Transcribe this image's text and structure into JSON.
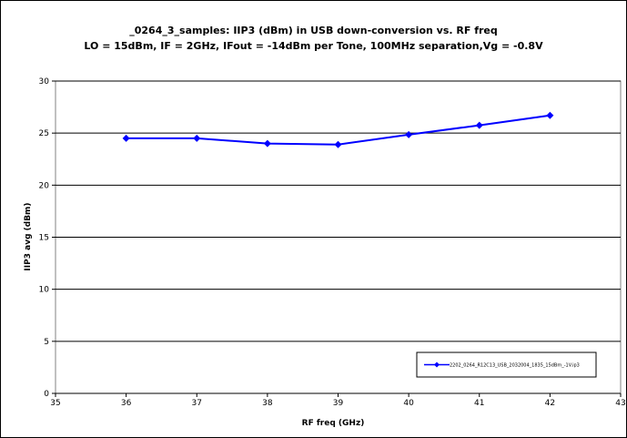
{
  "chart_data": {
    "type": "line",
    "title": "_0264_3_samples: IIP3 (dBm) in USB down-conversion vs. RF freq",
    "subtitle": "LO = 15dBm, IF = 2GHz, IFout = -14dBm per Tone, 100MHz separation,Vg = -0.8V",
    "xlabel": "RF freq (GHz)",
    "ylabel": "IIP3 avg (dBm)",
    "xlim": [
      35,
      43
    ],
    "ylim": [
      0,
      30
    ],
    "xticks": [
      35,
      36,
      37,
      38,
      39,
      40,
      41,
      42,
      43
    ],
    "yticks": [
      0,
      5,
      10,
      15,
      20,
      25,
      30
    ],
    "grid": "horizontal",
    "legend_position": "bottom-right",
    "colors": {
      "series": "#0000ff",
      "grid": "#000000",
      "background": "#ffffff"
    },
    "series": [
      {
        "name": "2202_0264_R12C13_USB_2032004_1835_15dBm_-1V.ip3",
        "marker": "diamond",
        "x": [
          36,
          37,
          38,
          39,
          40,
          41,
          42
        ],
        "y": [
          24.5,
          24.5,
          24.0,
          23.9,
          24.85,
          25.75,
          26.7
        ]
      }
    ]
  }
}
